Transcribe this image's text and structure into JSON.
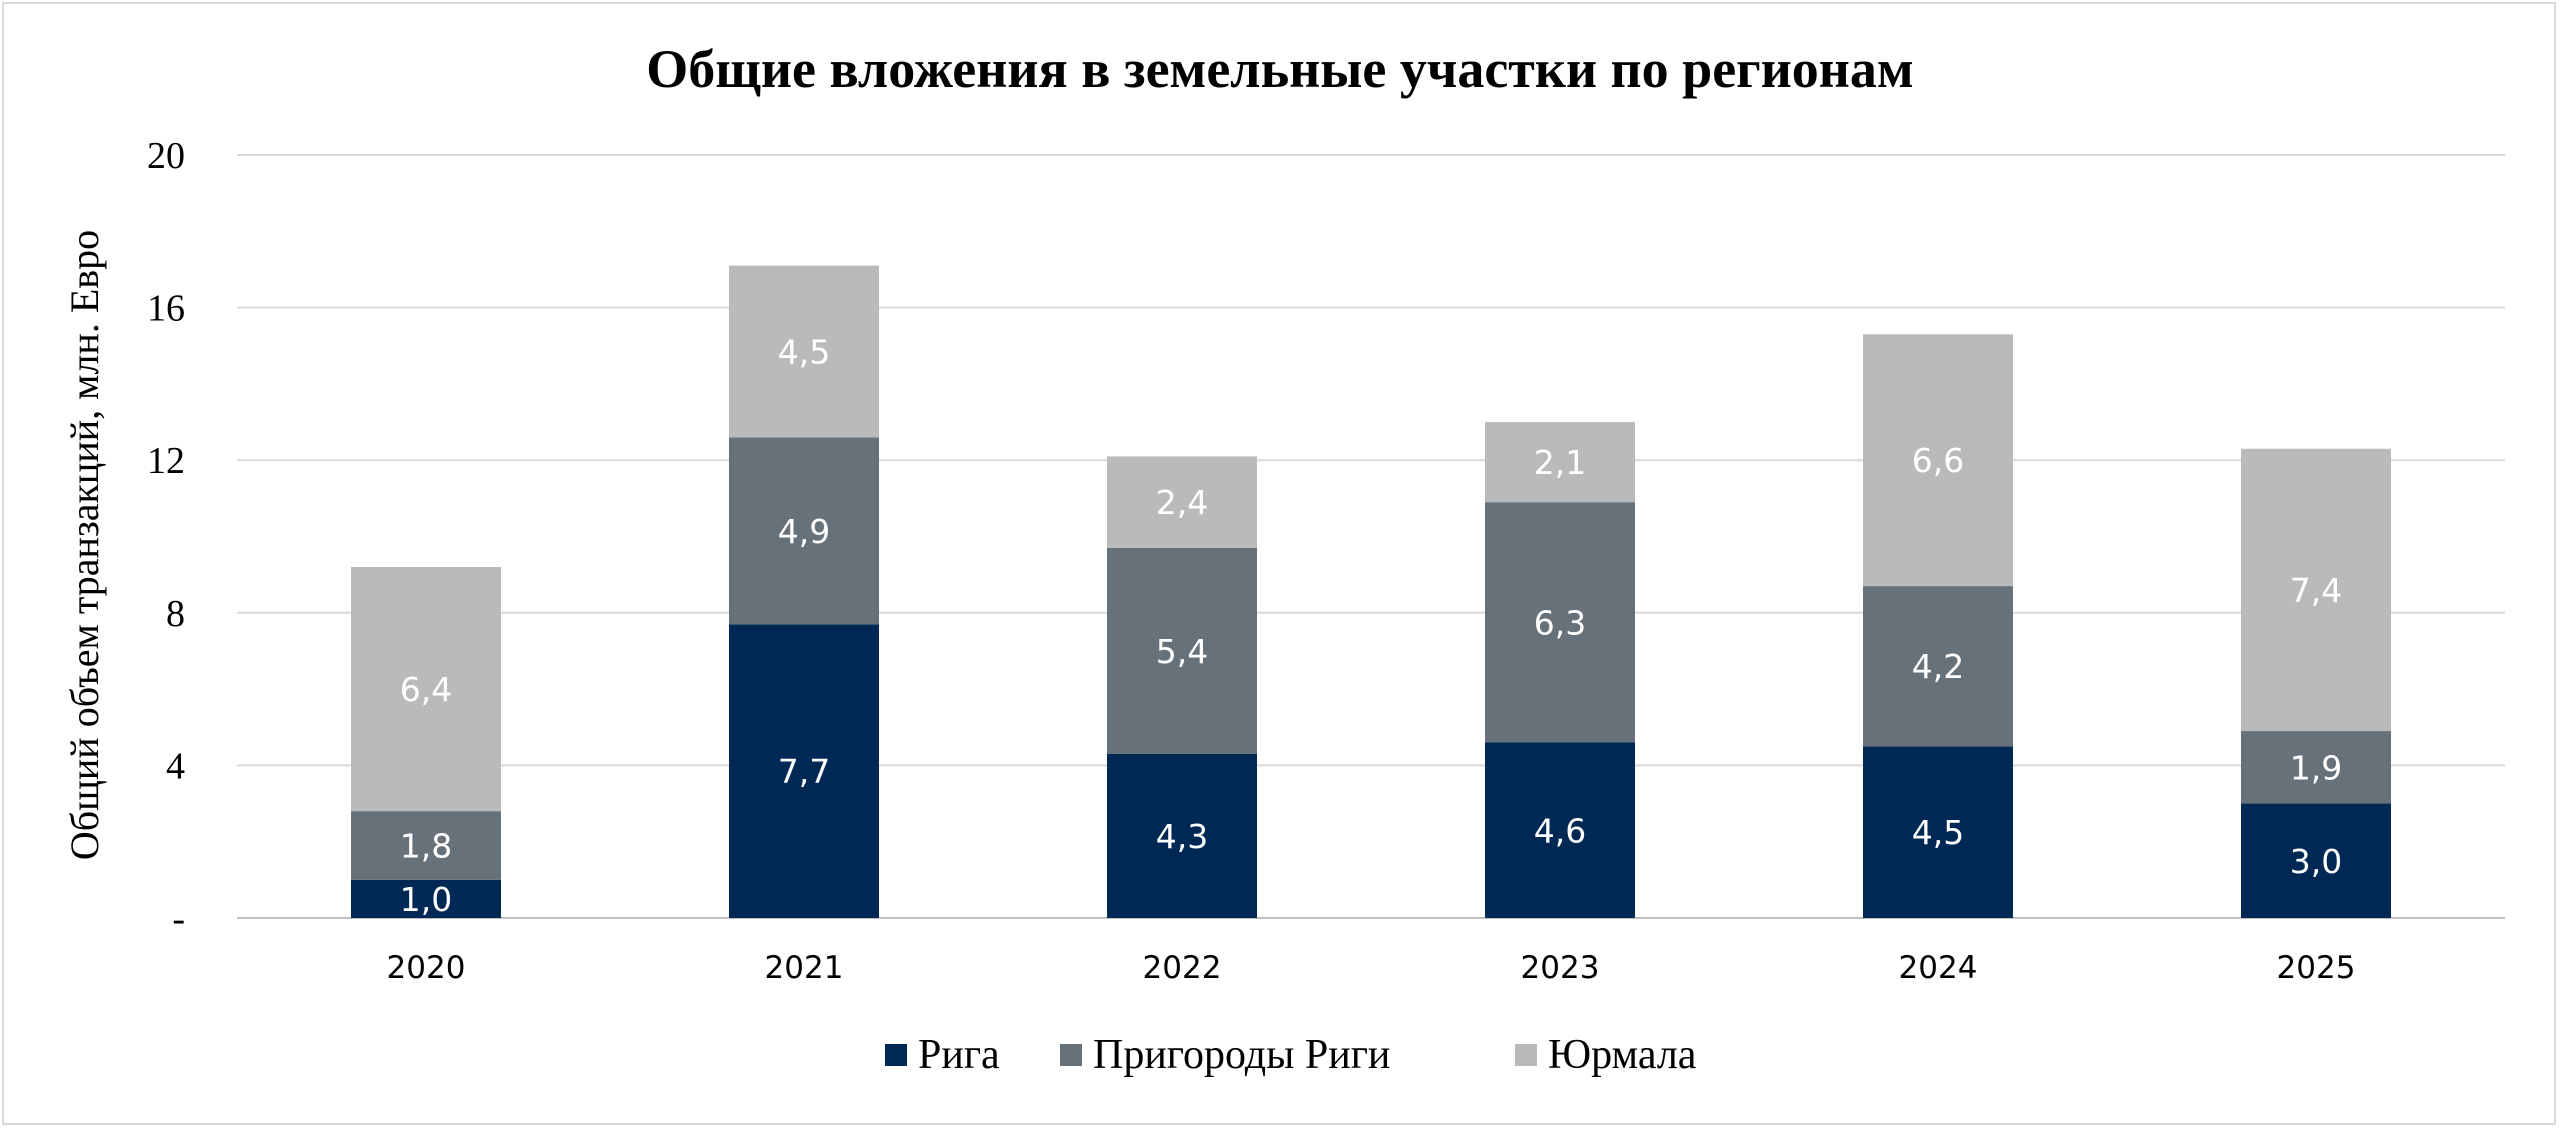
{
  "chart_data": {
    "type": "bar",
    "stacked": true,
    "title": "Общие вложения в земельные участки по регионам",
    "ylabel": "Общий объем транзакций, млн. Евро",
    "xlabel": "",
    "ylim": [
      0,
      20
    ],
    "yticks": [
      0,
      4,
      8,
      12,
      16,
      20
    ],
    "ytick_labels": [
      "-",
      "4",
      "8",
      "12",
      "16",
      "20"
    ],
    "categories": [
      "2020",
      "2021",
      "2022",
      "2023",
      "2024",
      "2025"
    ],
    "series": [
      {
        "name": "Рига",
        "color": "#002855",
        "values": [
          1.0,
          7.7,
          4.3,
          4.6,
          4.5,
          3.0
        ],
        "labels": [
          "1,0",
          "7,7",
          "4,3",
          "4,6",
          "4,5",
          "3,0"
        ]
      },
      {
        "name": "Пригороды Риги",
        "color": "#67717a",
        "values": [
          1.8,
          4.9,
          5.4,
          6.3,
          4.2,
          1.9
        ],
        "labels": [
          "1,8",
          "4,9",
          "5,4",
          "6,3",
          "4,2",
          "1,9"
        ]
      },
      {
        "name": "Юрмала",
        "color": "#b8babc",
        "values": [
          6.4,
          4.5,
          2.4,
          2.1,
          6.6,
          7.4
        ],
        "labels": [
          "6,4",
          "4,5",
          "2,4",
          "2,1",
          "6,6",
          "7,4"
        ]
      }
    ],
    "grid": true,
    "legend_position": "bottom"
  }
}
